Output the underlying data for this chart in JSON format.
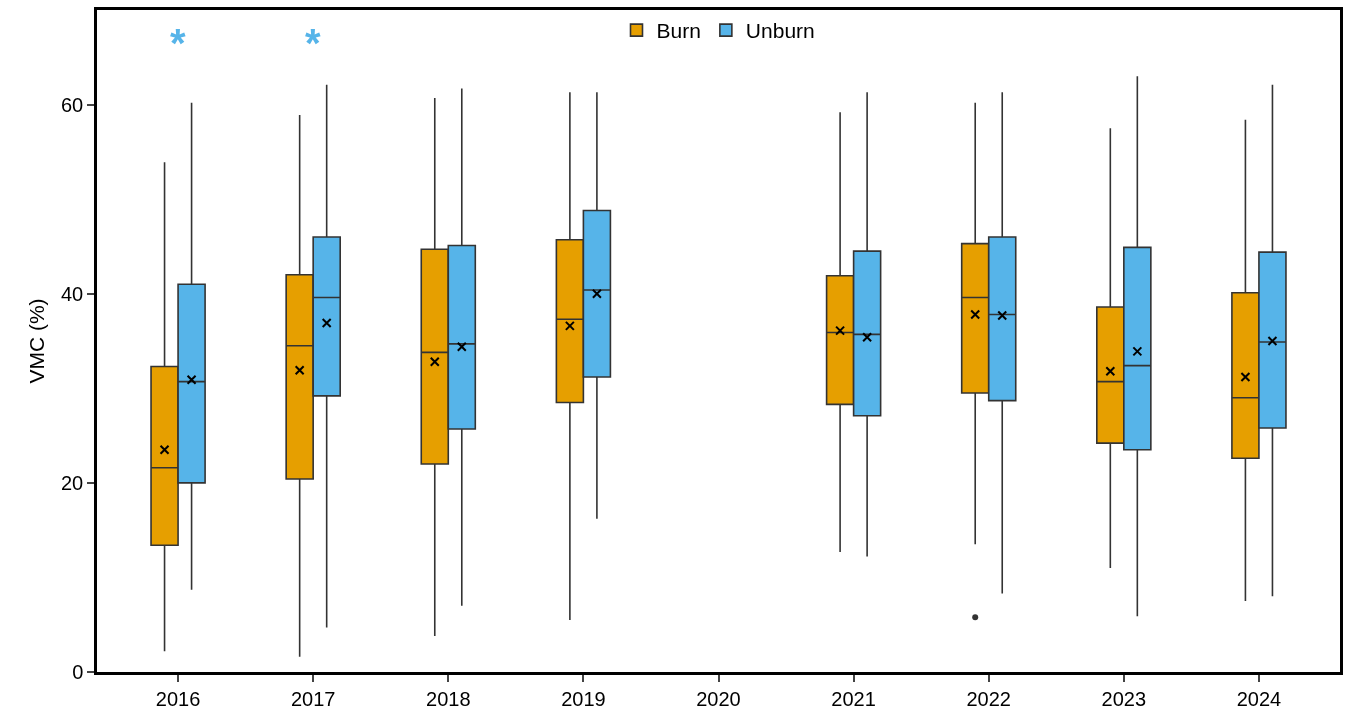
{
  "chart_data": {
    "type": "box",
    "ylabel": "VMC (%)",
    "categories": [
      "2016",
      "2017",
      "2018",
      "2019",
      "2020",
      "2021",
      "2022",
      "2023",
      "2024"
    ],
    "ylim": [
      0,
      70
    ],
    "yticks": [
      0,
      20,
      40,
      60
    ],
    "grid": false,
    "legend": "top",
    "annotations": [
      "*",
      "*"
    ],
    "series": [
      {
        "name": "Burn",
        "color": "#e69f00",
        "boxes": [
          {
            "low": 2.2,
            "q1": 13.4,
            "median": 21.6,
            "q3": 32.3,
            "high": 53.9,
            "mean": 23.5
          },
          {
            "low": 1.6,
            "q1": 20.4,
            "median": 34.5,
            "q3": 42.0,
            "high": 58.9,
            "mean": 31.9
          },
          {
            "low": 3.8,
            "q1": 22.0,
            "median": 33.8,
            "q3": 44.7,
            "high": 60.7,
            "mean": 32.8
          },
          {
            "low": 5.5,
            "q1": 28.5,
            "median": 37.3,
            "q3": 45.7,
            "high": 61.3,
            "mean": 36.6
          },
          null,
          {
            "low": 12.7,
            "q1": 28.3,
            "median": 35.9,
            "q3": 41.9,
            "high": 59.2,
            "mean": 36.1
          },
          {
            "low": 13.5,
            "q1": 29.5,
            "median": 39.6,
            "q3": 45.3,
            "high": 60.2,
            "mean": 37.8,
            "outliers": [
              5.8
            ]
          },
          {
            "low": 11.0,
            "q1": 24.2,
            "median": 30.7,
            "q3": 38.6,
            "high": 57.5,
            "mean": 31.8
          },
          {
            "low": 7.5,
            "q1": 22.6,
            "median": 29.0,
            "q3": 40.1,
            "high": 58.4,
            "mean": 31.2
          }
        ]
      },
      {
        "name": "Unburn",
        "color": "#56b4e9",
        "boxes": [
          {
            "low": 8.7,
            "q1": 20.0,
            "median": 30.7,
            "q3": 41.0,
            "high": 60.2,
            "mean": 30.9
          },
          {
            "low": 4.7,
            "q1": 29.2,
            "median": 39.6,
            "q3": 46.0,
            "high": 62.1,
            "mean": 36.9
          },
          {
            "low": 7.0,
            "q1": 25.7,
            "median": 34.7,
            "q3": 45.1,
            "high": 61.7,
            "mean": 34.4
          },
          {
            "low": 16.2,
            "q1": 31.2,
            "median": 40.4,
            "q3": 48.8,
            "high": 61.3,
            "mean": 40.0
          },
          null,
          {
            "low": 12.2,
            "q1": 27.1,
            "median": 35.7,
            "q3": 44.5,
            "high": 61.3,
            "mean": 35.4
          },
          {
            "low": 8.3,
            "q1": 28.7,
            "median": 37.8,
            "q3": 46.0,
            "high": 61.3,
            "mean": 37.7
          },
          {
            "low": 5.9,
            "q1": 23.5,
            "median": 32.4,
            "q3": 44.9,
            "high": 63.0,
            "mean": 33.9
          },
          {
            "low": 8.0,
            "q1": 25.8,
            "median": 34.9,
            "q3": 44.4,
            "high": 62.1,
            "mean": 35.0
          }
        ]
      }
    ]
  }
}
